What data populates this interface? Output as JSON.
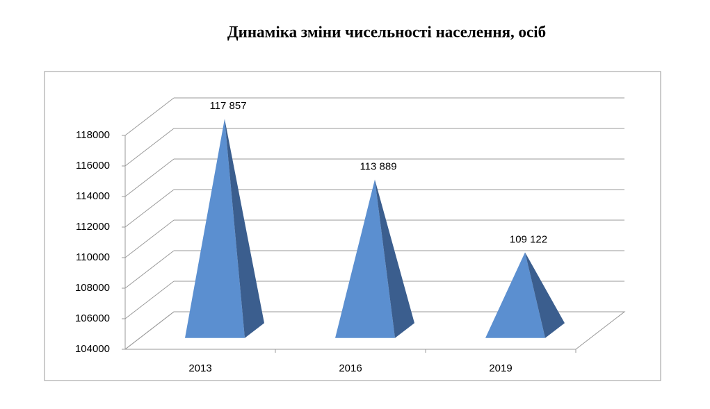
{
  "chart_data": {
    "type": "pyramid3d",
    "title": "Динаміка зміни чисельності населення, осіб",
    "categories": [
      "2013",
      "2016",
      "2019"
    ],
    "values": [
      117857,
      113889,
      109122
    ],
    "value_labels": [
      "117 857",
      "113 889",
      "109 122"
    ],
    "color": "#5b8fd0",
    "shade_color": "#3b5e8e",
    "ylim": [
      104000,
      118000
    ],
    "yticks": [
      104000,
      106000,
      108000,
      110000,
      112000,
      114000,
      116000,
      118000
    ],
    "grid": true
  }
}
